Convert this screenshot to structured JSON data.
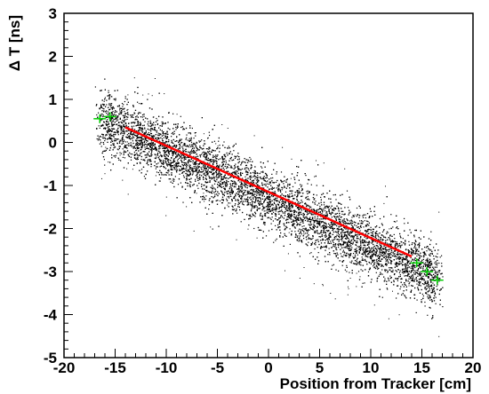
{
  "chart_data": {
    "type": "scatter",
    "title": "",
    "xlabel": "Position from Tracker [cm]",
    "ylabel": "Δ T [ns]",
    "xlim": [
      -20,
      20
    ],
    "ylim": [
      -5,
      3
    ],
    "x_ticks": [
      -20,
      -15,
      -10,
      -5,
      0,
      5,
      10,
      15,
      20
    ],
    "y_ticks": [
      3,
      2,
      1,
      0,
      -1,
      -2,
      -3,
      -4,
      -5
    ],
    "x_tick_labels": [
      "-20",
      "-15",
      "-10",
      "-5",
      "0",
      "5",
      "10",
      "15",
      "20"
    ],
    "y_tick_labels": [
      "3",
      "2",
      "1",
      "0",
      "-1",
      "-2",
      "-3",
      "-4",
      "-5"
    ],
    "grid": false,
    "scatter_band": {
      "x_range": [
        -17,
        17
      ],
      "trend": [
        {
          "x": -17,
          "y": 0.6
        },
        {
          "x": 17,
          "y": -3.2
        }
      ],
      "spread_ns": 0.35,
      "color": "#000000"
    },
    "series": [
      {
        "kind": "fit_line",
        "color": "#ff0000",
        "points": [
          {
            "x": -14,
            "y": 0.35
          },
          {
            "x": 14,
            "y": -2.65
          }
        ]
      },
      {
        "kind": "profile_markers",
        "color": "#00cc00",
        "points": [
          {
            "x": -16.5,
            "y": 0.55
          },
          {
            "x": -15.5,
            "y": 0.6
          },
          {
            "x": 14.5,
            "y": -2.8
          },
          {
            "x": 15.5,
            "y": -3.0
          },
          {
            "x": 16.5,
            "y": -3.2
          }
        ]
      }
    ]
  }
}
